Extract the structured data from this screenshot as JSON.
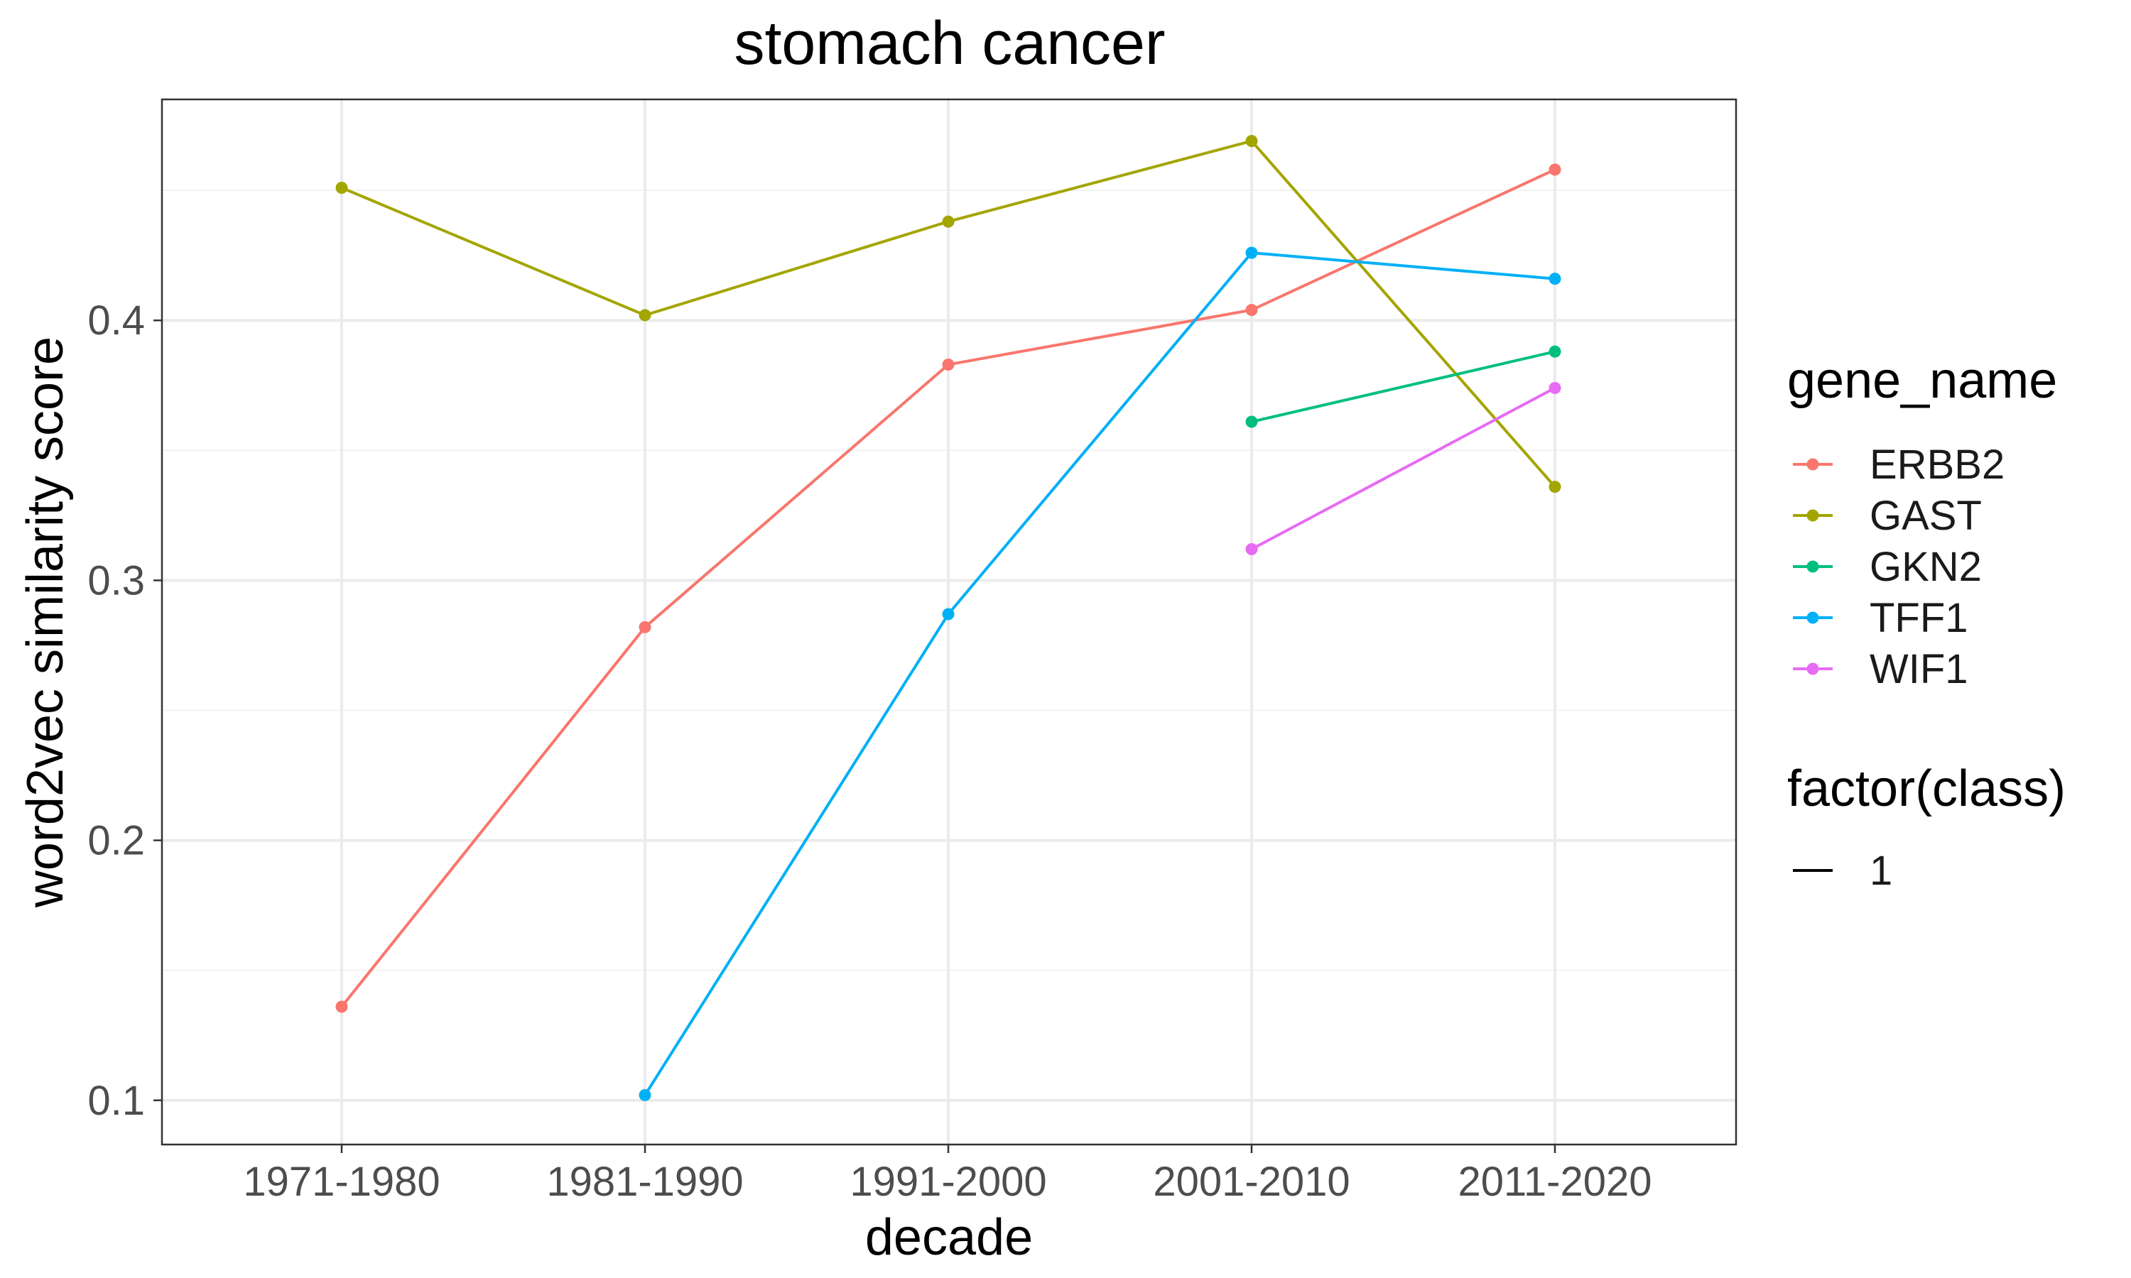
{
  "chart_data": {
    "type": "line",
    "title": "stomach cancer",
    "xlabel": "decade",
    "ylabel": "word2vec similarity score",
    "categories": [
      "1971-1980",
      "1981-1990",
      "1991-2000",
      "2001-2010",
      "2011-2020"
    ],
    "ylim": [
      0.083,
      0.485
    ],
    "yticks": [
      0.1,
      0.2,
      0.3,
      0.4
    ],
    "ytick_labels": [
      "0.1",
      "0.2",
      "0.3",
      "0.4"
    ],
    "grid": true,
    "legend_position": "right",
    "series": [
      {
        "name": "ERBB2",
        "color": "#F8766D",
        "values": [
          0.136,
          0.282,
          0.383,
          0.404,
          0.458
        ]
      },
      {
        "name": "GAST",
        "color": "#A3A500",
        "values": [
          0.451,
          0.402,
          0.438,
          0.469,
          0.336
        ]
      },
      {
        "name": "GKN2",
        "color": "#00BF7D",
        "values": [
          null,
          null,
          null,
          0.361,
          0.388
        ]
      },
      {
        "name": "TFF1",
        "color": "#00B0F6",
        "values": [
          null,
          0.102,
          0.287,
          0.426,
          0.416
        ]
      },
      {
        "name": "WIF1",
        "color": "#E76BF3",
        "values": [
          null,
          null,
          null,
          0.312,
          0.374
        ]
      }
    ],
    "legends": [
      {
        "title": "gene_name",
        "entries": [
          "ERBB2",
          "GAST",
          "GKN2",
          "TFF1",
          "WIF1"
        ]
      },
      {
        "title": "factor(class)",
        "entries": [
          "1"
        ]
      }
    ]
  }
}
